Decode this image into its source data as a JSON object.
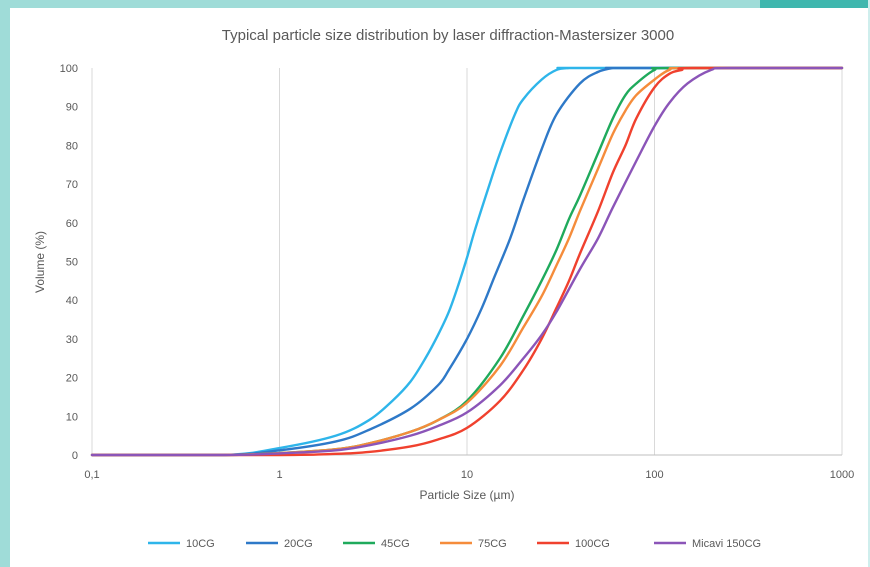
{
  "chart_data": {
    "type": "line",
    "title": "Typical particle size distribution by laser diffraction-Mastersizer 3000",
    "xlabel": "Particle Size (µm)",
    "ylabel": "Volume (%)",
    "xscale": "log",
    "xlim": [
      0.1,
      1000
    ],
    "ylim": [
      0,
      100
    ],
    "x_ticks": [
      "0,1",
      "1",
      "10",
      "100",
      "1000"
    ],
    "y_ticks": [
      "0",
      "10",
      "20",
      "30",
      "40",
      "50",
      "60",
      "70",
      "80",
      "90",
      "100"
    ],
    "grid": "vertical major gridlines",
    "legend_position": "bottom",
    "series": [
      {
        "name": "10CG",
        "color": "#2eb5ea",
        "x": [
          0.1,
          0.5,
          1,
          2,
          3,
          4,
          5,
          6,
          7,
          8,
          9,
          10,
          11,
          13,
          15,
          18,
          20,
          25,
          30,
          35,
          40,
          1000
        ],
        "y": [
          0,
          0,
          1.8,
          5,
          9,
          14,
          19,
          25,
          31,
          37,
          44,
          51,
          58,
          69,
          78,
          88,
          92,
          97,
          99.5,
          100,
          100,
          100
        ]
      },
      {
        "name": "20CG",
        "color": "#2e79c8",
        "x": [
          0.1,
          0.5,
          1,
          2,
          3,
          5,
          7,
          8,
          10,
          12,
          14,
          17,
          20,
          25,
          30,
          40,
          50,
          60,
          70,
          1000
        ],
        "y": [
          0,
          0,
          1.2,
          3.5,
          6.5,
          12,
          18,
          22,
          30,
          38,
          46,
          56,
          66,
          79,
          88,
          96,
          99,
          100,
          100,
          100
        ]
      },
      {
        "name": "45CG",
        "color": "#1faa5c",
        "x": [
          0.1,
          0.5,
          1,
          2,
          3,
          5,
          7,
          10,
          15,
          20,
          25,
          30,
          35,
          40,
          50,
          60,
          70,
          80,
          100,
          120,
          1000
        ],
        "y": [
          0,
          0,
          0.5,
          1.5,
          3,
          6,
          9,
          14,
          25,
          36,
          45,
          53,
          61,
          67,
          78,
          87,
          93,
          96,
          99.5,
          100,
          100
        ]
      },
      {
        "name": "75CG",
        "color": "#f58c3b",
        "x": [
          0.1,
          0.5,
          1,
          2,
          3,
          5,
          7,
          10,
          15,
          20,
          25,
          30,
          35,
          40,
          50,
          60,
          70,
          80,
          100,
          120,
          150,
          1000
        ],
        "y": [
          0,
          0,
          0.5,
          1.5,
          3,
          6,
          9,
          13.5,
          23,
          33,
          41,
          49,
          56,
          63,
          74,
          83,
          89,
          93,
          97,
          99.5,
          100,
          100
        ]
      },
      {
        "name": "100CG",
        "color": "#f0412e",
        "x": [
          0.1,
          1,
          2,
          3,
          5,
          7,
          10,
          15,
          20,
          25,
          30,
          35,
          40,
          50,
          60,
          70,
          80,
          100,
          120,
          140,
          160,
          1000
        ],
        "y": [
          0,
          0,
          0.3,
          0.8,
          2.2,
          4,
          7,
          14,
          22,
          30,
          38,
          45,
          52,
          63,
          73,
          80,
          87,
          95,
          98.5,
          99.5,
          100,
          100
        ]
      },
      {
        "name": "Micavi 150CG",
        "color": "#8b55b8",
        "x": [
          0.1,
          0.5,
          1,
          2,
          3,
          5,
          7,
          10,
          15,
          20,
          25,
          30,
          40,
          50,
          60,
          80,
          100,
          120,
          150,
          200,
          250,
          1000
        ],
        "y": [
          0,
          0,
          0.4,
          1.2,
          2.5,
          5,
          7.5,
          11,
          18,
          25,
          31,
          37,
          48,
          56,
          64,
          76,
          85,
          91,
          96,
          99.5,
          100,
          100
        ]
      }
    ]
  }
}
